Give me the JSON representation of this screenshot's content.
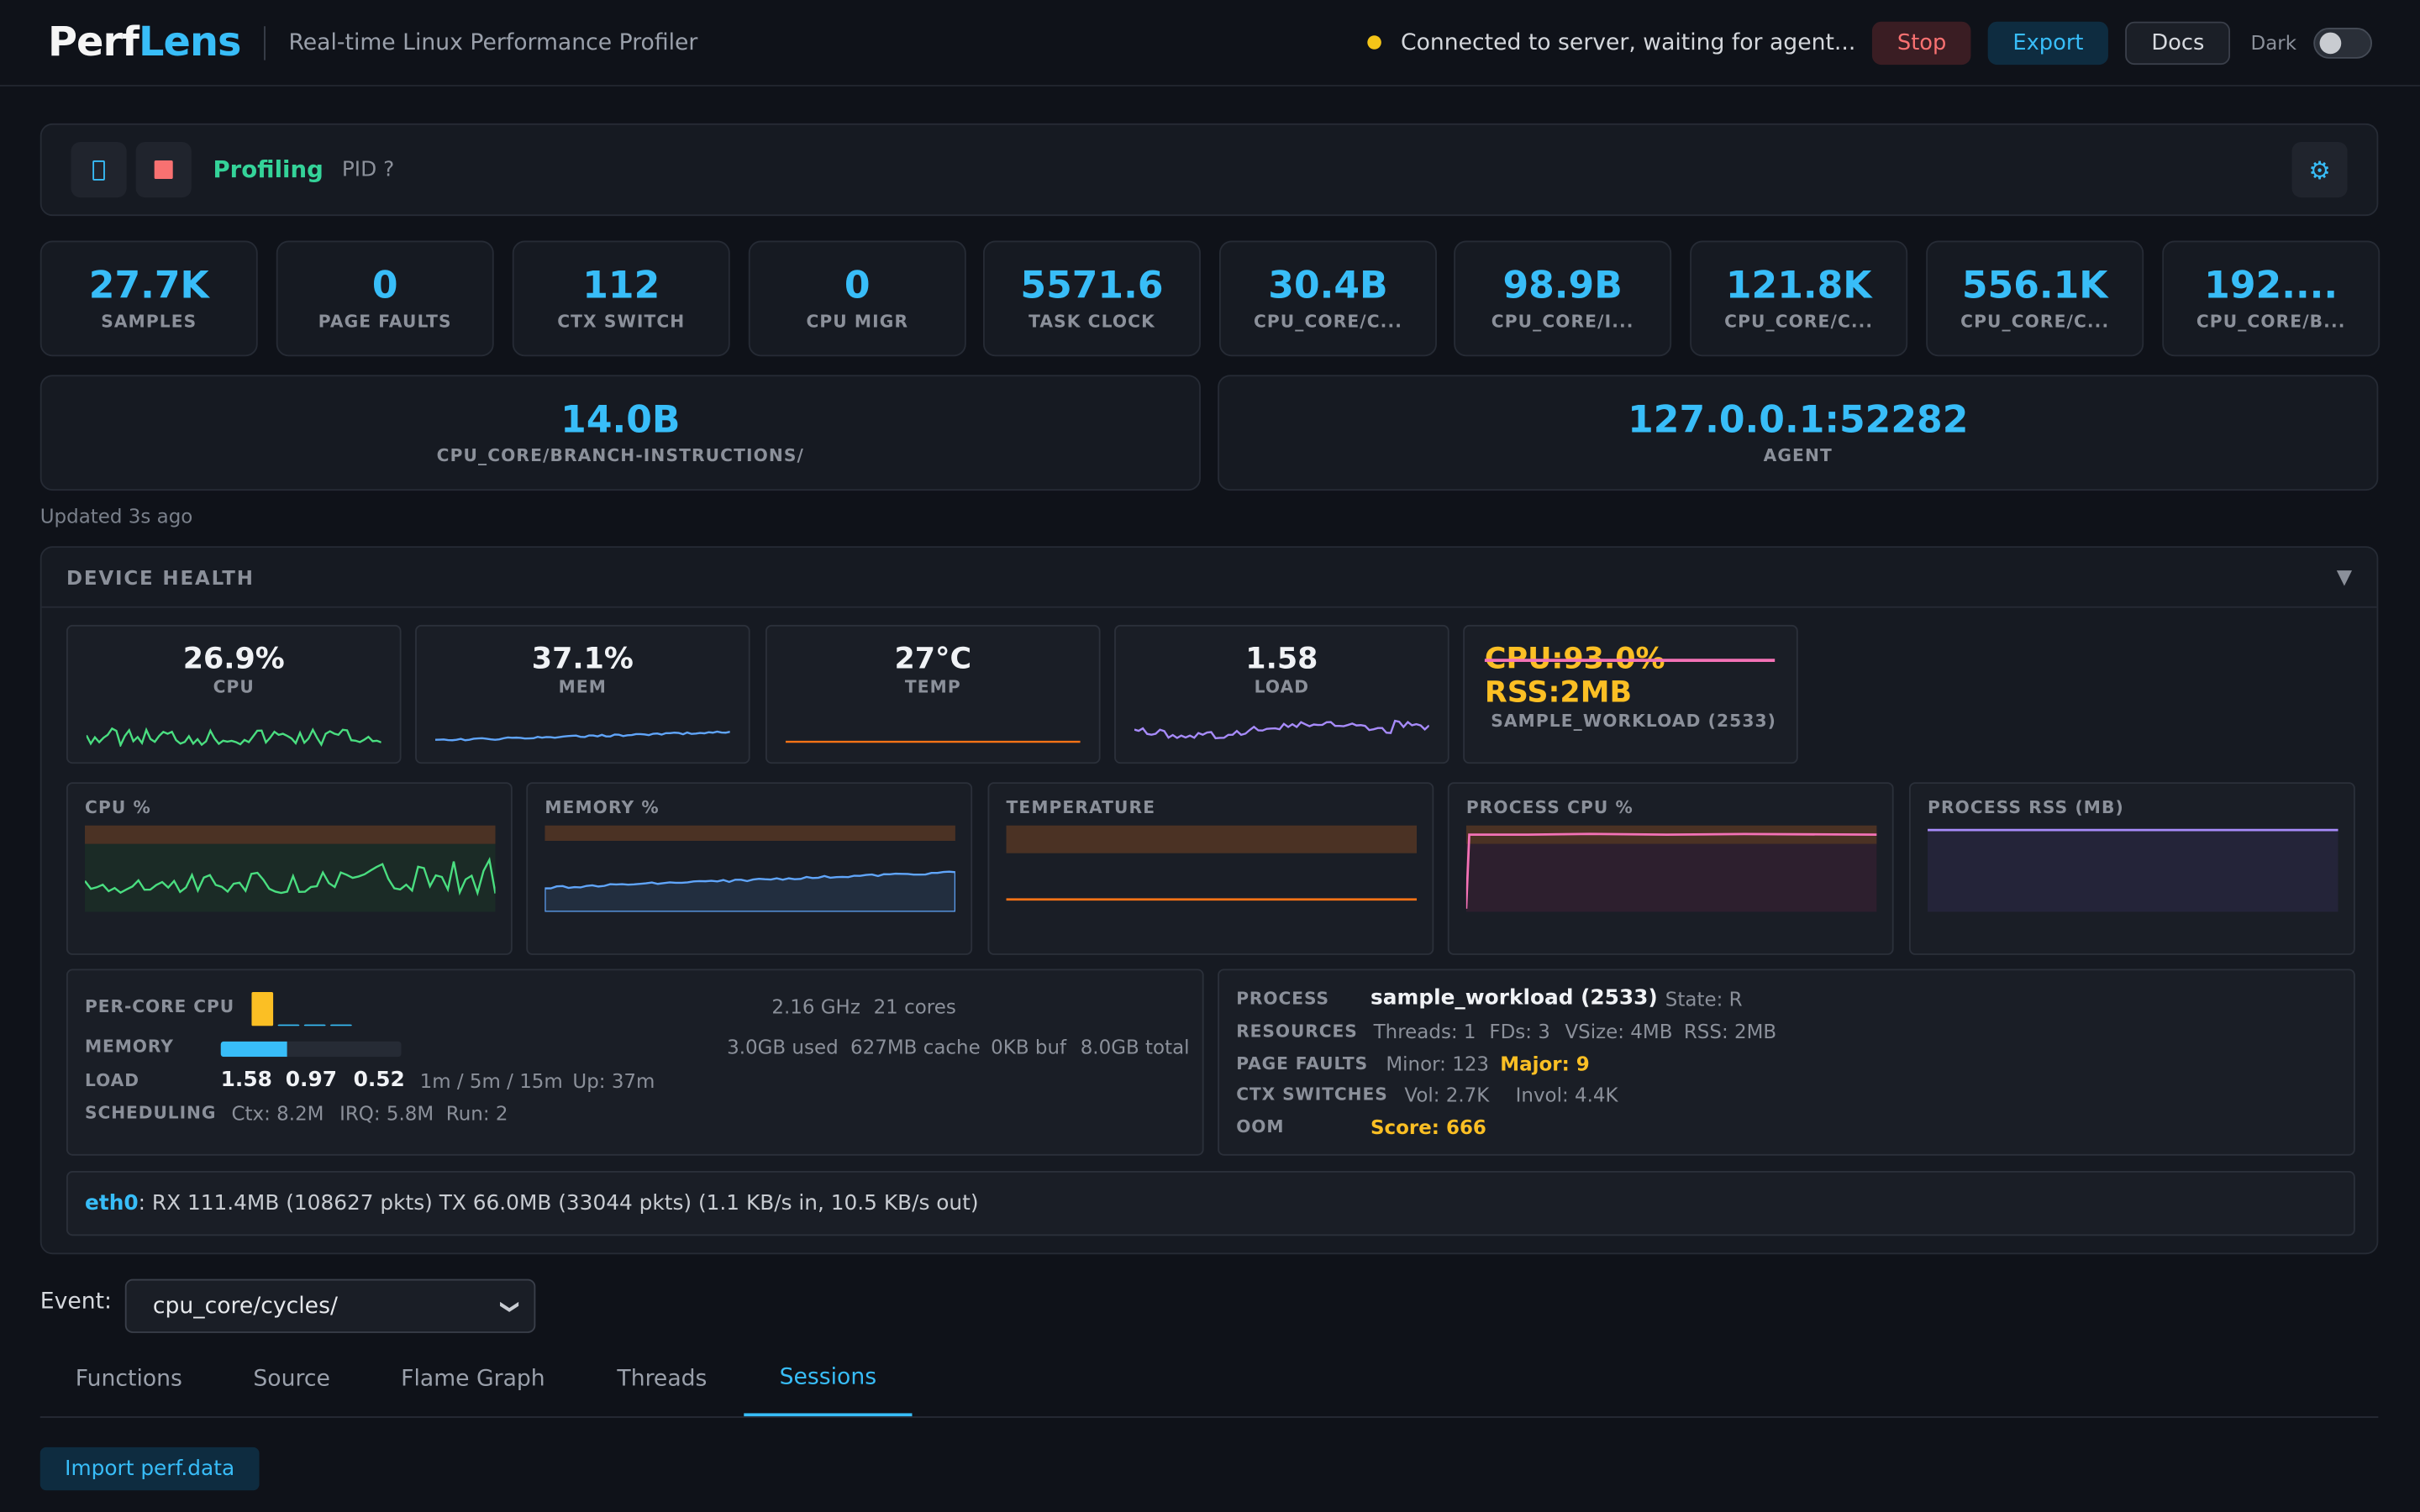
{
  "header": {
    "logo_left": "Perf",
    "logo_right": "Lens",
    "subtitle": "Real-time Linux Performance Profiler",
    "status_text": "Connected to server, waiting for agent...",
    "stop_label": "Stop",
    "export_label": "Export",
    "docs_label": "Docs",
    "theme_label": "Dark"
  },
  "control": {
    "state": "Profiling",
    "pid": "PID ?"
  },
  "stats": [
    {
      "value": "27.7K",
      "label": "SAMPLES"
    },
    {
      "value": "0",
      "label": "PAGE FAULTS"
    },
    {
      "value": "112",
      "label": "CTX SWITCH"
    },
    {
      "value": "0",
      "label": "CPU MIGR"
    },
    {
      "value": "5571.6",
      "label": "TASK CLOCK"
    },
    {
      "value": "30.4B",
      "label": "CPU_CORE/C..."
    },
    {
      "value": "98.9B",
      "label": "CPU_CORE/I..."
    },
    {
      "value": "121.8K",
      "label": "CPU_CORE/C..."
    },
    {
      "value": "556.1K",
      "label": "CPU_CORE/C..."
    },
    {
      "value": "192....",
      "label": "CPU_CORE/B..."
    }
  ],
  "wide_stats": [
    {
      "value": "14.0B",
      "label": "CPU_CORE/BRANCH-INSTRUCTIONS/"
    },
    {
      "value": "127.0.0.1:52282",
      "label": "AGENT"
    }
  ],
  "updated": "Updated 3s ago",
  "device_health": {
    "title": "DEVICE HEALTH",
    "collapse_icon": "▼",
    "minis": [
      {
        "value": "26.9%",
        "label": "CPU"
      },
      {
        "value": "37.1%",
        "label": "MEM"
      },
      {
        "value": "27°C",
        "label": "TEMP"
      },
      {
        "value": "1.58",
        "label": "LOAD"
      }
    ],
    "process_mini": {
      "value": "CPU:93.0% RSS:2MB",
      "label": "SAMPLE_WORKLOAD (2533)"
    },
    "charts": [
      {
        "title": "CPU %"
      },
      {
        "title": "MEMORY %"
      },
      {
        "title": "TEMPERATURE"
      },
      {
        "title": "PROCESS CPU %"
      },
      {
        "title": "PROCESS RSS (MB)"
      }
    ],
    "system": {
      "per_core_label": "PER-CORE CPU",
      "per_core_levels": [
        0.9,
        0.05,
        0.05,
        0.05
      ],
      "freq": "2.16 GHz",
      "cores": "21 cores",
      "memory_label": "MEMORY",
      "memory_fraction": 0.371,
      "mem_used": "3.0GB used",
      "mem_cache": "627MB cache",
      "mem_buf": "0KB buf",
      "mem_total": "8.0GB total",
      "load_label": "LOAD",
      "load1": "1.58",
      "load5": "0.97",
      "load15": "0.52",
      "load_desc": "1m / 5m / 15m",
      "uptime": "Up: 37m",
      "sched_label": "SCHEDULING",
      "ctx": "Ctx: 8.2M",
      "irq": "IRQ: 5.8M",
      "run": "Run: 2"
    },
    "process": {
      "process_label": "PROCESS",
      "name": "sample_workload (2533)",
      "state": "State: R",
      "resources_label": "RESOURCES",
      "threads": "Threads: 1",
      "fds": "FDs: 3",
      "vsize": "VSize: 4MB",
      "rss": "RSS: 2MB",
      "faults_label": "PAGE FAULTS",
      "minor": "Minor: 123",
      "major": "Major: 9",
      "ctx_label": "CTX SWITCHES",
      "vol": "Vol: 2.7K",
      "invol": "Invol: 4.4K",
      "oom_label": "OOM",
      "oom_score": "Score: 666"
    },
    "network": {
      "iface": "eth0",
      "text": ": RX 111.4MB (108627 pkts) TX 66.0MB (33044 pkts) (1.1 KB/s in, 10.5 KB/s out)"
    }
  },
  "event": {
    "label": "Event:",
    "selected": "cpu_core/cycles/"
  },
  "tabs": [
    {
      "label": "Functions"
    },
    {
      "label": "Source"
    },
    {
      "label": "Flame Graph"
    },
    {
      "label": "Threads"
    },
    {
      "label": "Sessions"
    }
  ],
  "active_tab": "Sessions",
  "import_label": "Import perf.data",
  "colors": {
    "accent": "#38bdf8",
    "cpu": "#4ade80",
    "mem": "#60a5fa",
    "temp": "#f97316",
    "load": "#a78bfa",
    "process_cpu": "#f472b6",
    "warning": "#fbbf24"
  }
}
